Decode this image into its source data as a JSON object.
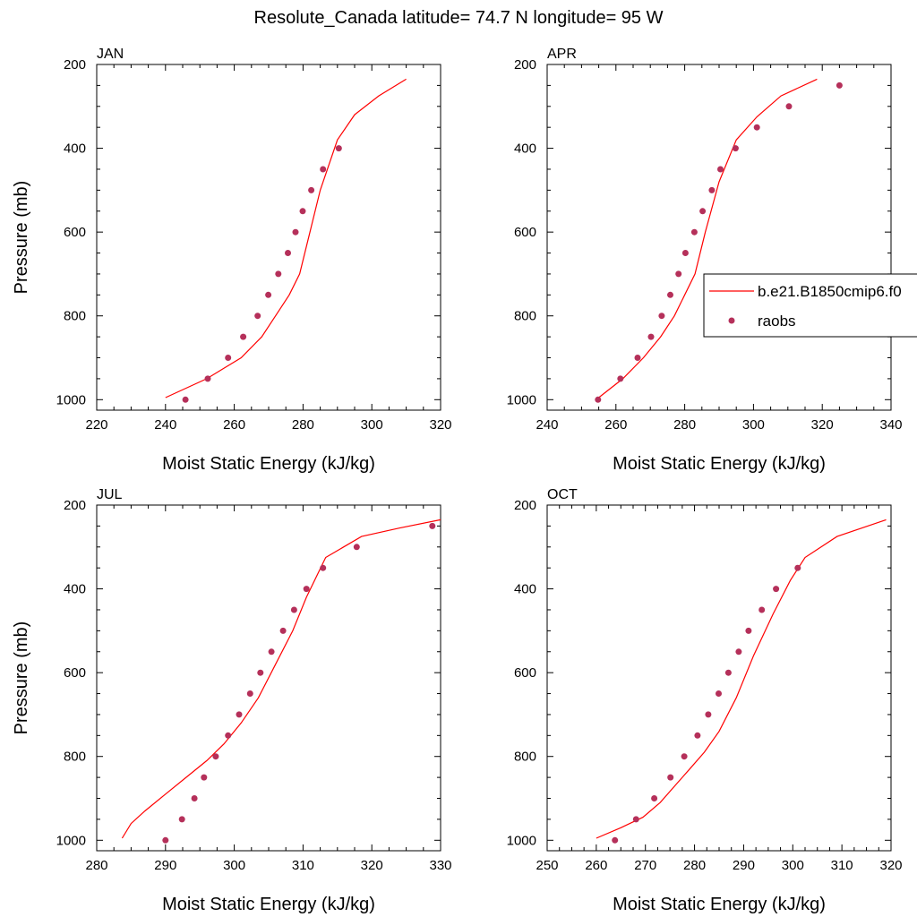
{
  "figure_title": "Resolute_Canada  latitude= 74.7 N longitude= 95 W",
  "legend": {
    "model_label": "b.e21.B1850cmip6.f0",
    "obs_label": "raobs"
  },
  "colors": {
    "model_line": "#ff0000",
    "obs_marker": "#b5305a"
  },
  "chart_data": [
    {
      "type": "line",
      "panel_title": "JAN",
      "xlabel": "Moist Static Energy (kJ/kg)",
      "ylabel": "Pressure (mb)",
      "xlim": [
        220,
        320
      ],
      "ylim": [
        200,
        1025
      ],
      "y_reversed": true,
      "xticks": [
        220,
        240,
        260,
        280,
        300,
        320
      ],
      "yticks": [
        200,
        400,
        600,
        800,
        1000
      ],
      "model": {
        "x": [
          240,
          252,
          262,
          268,
          272,
          276,
          279,
          282,
          285,
          290,
          295,
          302,
          310
        ],
        "y": [
          995,
          950,
          900,
          850,
          800,
          750,
          700,
          600,
          500,
          380,
          320,
          275,
          235
        ]
      },
      "obs": {
        "x": [
          245.8,
          252.3,
          258.2,
          262.6,
          266.8,
          269.9,
          272.8,
          275.6,
          277.8,
          279.9,
          282.4,
          285.8,
          290.4
        ],
        "y": [
          1000,
          950,
          900,
          850,
          800,
          750,
          700,
          650,
          600,
          550,
          500,
          450,
          400
        ]
      }
    },
    {
      "type": "line",
      "panel_title": "APR",
      "xlabel": "Moist Static Energy (kJ/kg)",
      "ylabel": "",
      "xlim": [
        240,
        340
      ],
      "ylim": [
        200,
        1025
      ],
      "y_reversed": true,
      "xticks": [
        240,
        260,
        280,
        300,
        320,
        340
      ],
      "yticks": [
        200,
        400,
        600,
        800,
        1000
      ],
      "model": {
        "x": [
          255,
          262,
          268,
          273,
          277,
          280,
          283,
          286,
          290,
          295,
          301,
          308,
          318.5
        ],
        "y": [
          995,
          950,
          900,
          850,
          800,
          750,
          700,
          600,
          480,
          380,
          325,
          275,
          235
        ]
      },
      "obs": {
        "x": [
          254.8,
          261.3,
          266.3,
          270.2,
          273.3,
          275.8,
          278.2,
          280.2,
          282.8,
          285.2,
          287.9,
          290.4,
          294.8,
          301.0,
          310.3,
          325.0
        ],
        "y": [
          1000,
          950,
          900,
          850,
          800,
          750,
          700,
          650,
          600,
          550,
          500,
          450,
          400,
          350,
          300,
          250
        ]
      }
    },
    {
      "type": "line",
      "panel_title": "JUL",
      "xlabel": "Moist Static Energy (kJ/kg)",
      "ylabel": "Pressure (mb)",
      "xlim": [
        280,
        330
      ],
      "ylim": [
        200,
        1025
      ],
      "y_reversed": true,
      "xticks": [
        280,
        290,
        300,
        310,
        320,
        330
      ],
      "yticks": [
        200,
        400,
        600,
        800,
        1000
      ],
      "model": {
        "x": [
          283.7,
          285,
          287,
          290,
          293,
          296,
          298.5,
          301,
          303.5,
          306,
          308.5,
          310.5,
          313.3,
          318.5,
          324,
          330
        ],
        "y": [
          995,
          960,
          930,
          890,
          850,
          810,
          770,
          720,
          660,
          580,
          500,
          420,
          325,
          275,
          255,
          235
        ]
      },
      "obs": {
        "x": [
          290.0,
          292.4,
          294.2,
          295.6,
          297.3,
          299.1,
          300.7,
          302.3,
          303.8,
          305.4,
          307.1,
          308.7,
          310.5,
          312.9,
          317.8,
          328.8
        ],
        "y": [
          1000,
          950,
          900,
          850,
          800,
          750,
          700,
          650,
          600,
          550,
          500,
          450,
          400,
          350,
          300,
          250
        ]
      }
    },
    {
      "type": "line",
      "panel_title": "OCT",
      "xlabel": "Moist Static Energy (kJ/kg)",
      "ylabel": "",
      "xlim": [
        250,
        320
      ],
      "ylim": [
        200,
        1025
      ],
      "y_reversed": true,
      "xticks": [
        250,
        260,
        270,
        280,
        290,
        300,
        310,
        320
      ],
      "yticks": [
        200,
        400,
        600,
        800,
        1000
      ],
      "model": {
        "x": [
          260,
          265,
          269.5,
          273,
          276,
          279,
          282,
          285,
          288.5,
          292,
          296,
          299.5,
          302.5,
          309,
          319
        ],
        "y": [
          995,
          970,
          945,
          910,
          870,
          830,
          790,
          740,
          660,
          560,
          460,
          380,
          325,
          275,
          235
        ]
      },
      "obs": {
        "x": [
          263.8,
          268.1,
          271.8,
          275.1,
          277.9,
          280.6,
          282.8,
          284.9,
          286.9,
          289.0,
          291.0,
          293.7,
          296.6,
          301.0
        ],
        "y": [
          1000,
          950,
          900,
          850,
          800,
          750,
          700,
          650,
          600,
          550,
          500,
          450,
          400,
          350
        ]
      }
    }
  ]
}
